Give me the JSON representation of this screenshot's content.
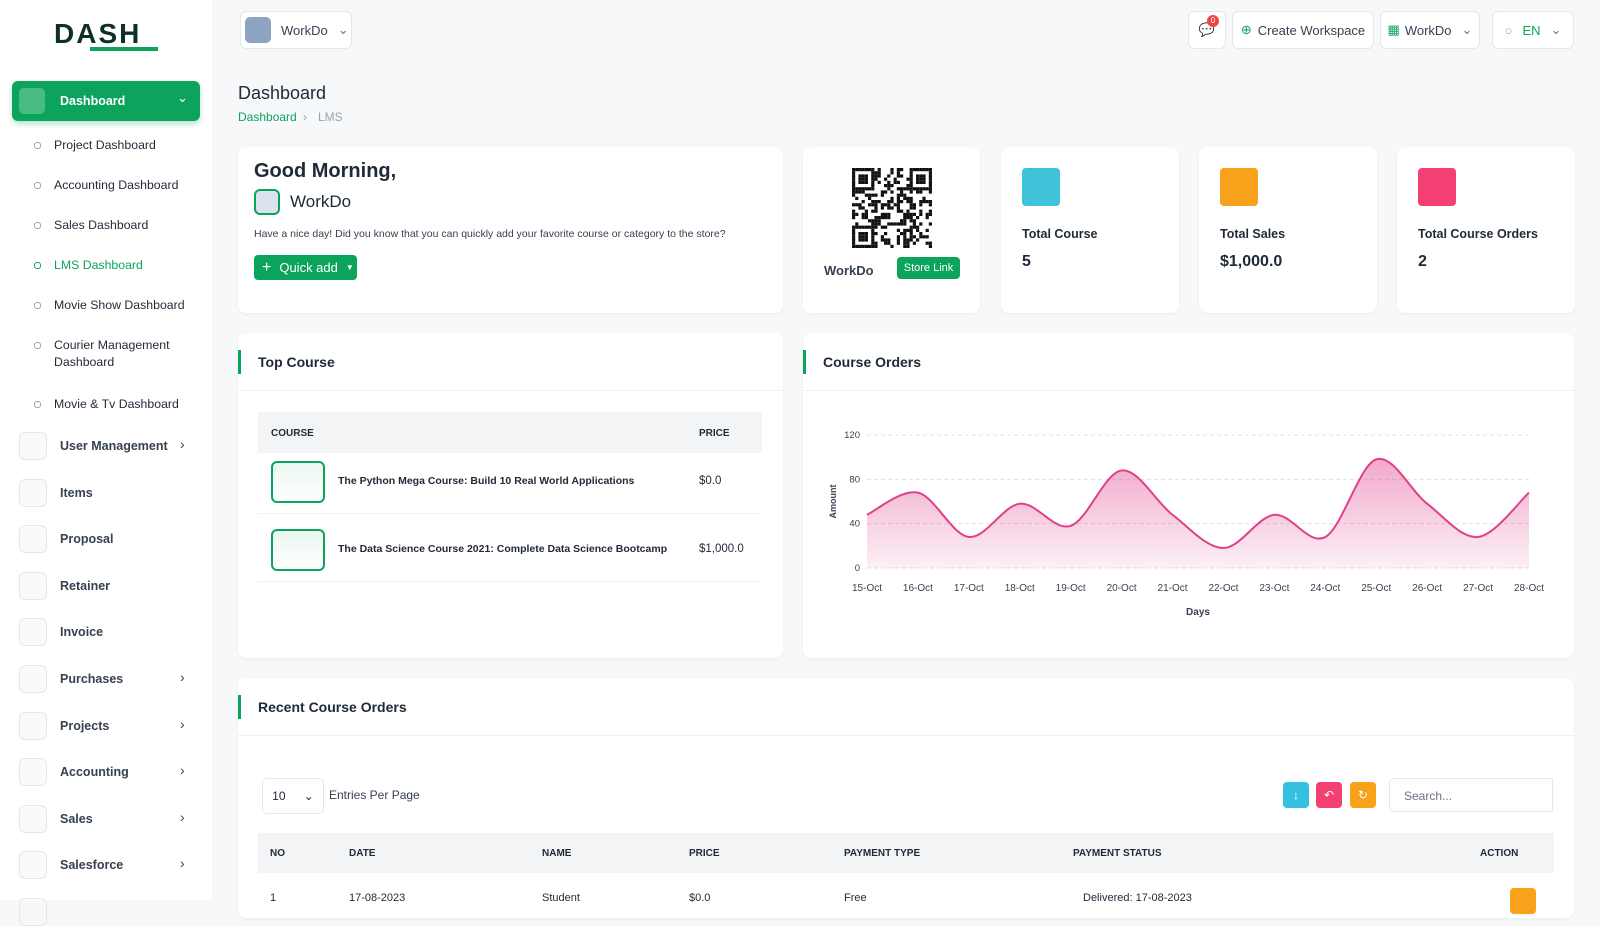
{
  "logo": "DASH",
  "header": {
    "workspace": "WorkDo",
    "notifications": "0",
    "create_workspace": "Create Workspace",
    "user": "WorkDo",
    "language": "EN"
  },
  "sidebar": {
    "dashboard": "Dashboard",
    "submenu": [
      "Project Dashboard",
      "Accounting Dashboard",
      "Sales Dashboard",
      "LMS Dashboard",
      "Movie Show Dashboard",
      "Courier Management Dashboard",
      "Movie & Tv Dashboard"
    ],
    "menu": [
      "User Management",
      "Items",
      "Proposal",
      "Retainer",
      "Invoice",
      "Purchases",
      "Projects",
      "Accounting",
      "Sales",
      "Salesforce"
    ]
  },
  "page": {
    "title": "Dashboard",
    "breadcrumb": [
      "Dashboard",
      "LMS"
    ]
  },
  "welcome": {
    "greeting": "Good Morning,",
    "name": "WorkDo",
    "message": "Have a nice day! Did you know that you can quickly add your favorite course or category to the store?",
    "button": "Quick add"
  },
  "store": {
    "name": "WorkDo",
    "button": "Store Link"
  },
  "stats": [
    {
      "label": "Total Course",
      "value": "5"
    },
    {
      "label": "Total Sales",
      "value": "$1,000.0"
    },
    {
      "label": "Total Course Orders",
      "value": "2"
    }
  ],
  "top_course": {
    "title": "Top Course",
    "columns": [
      "COURSE",
      "PRICE"
    ],
    "rows": [
      [
        "The Python Mega Course: Build 10 Real World Applications",
        "$0.0"
      ],
      [
        "The Data Science Course 2021: Complete Data Science Bootcamp",
        "$1,000.0"
      ]
    ]
  },
  "chart_data": {
    "type": "area",
    "title": "Course Orders",
    "x_label": "Days",
    "y_label": "Amount",
    "categories": [
      "15-Oct",
      "16-Oct",
      "17-Oct",
      "18-Oct",
      "19-Oct",
      "20-Oct",
      "21-Oct",
      "22-Oct",
      "23-Oct",
      "24-Oct",
      "25-Oct",
      "26-Oct",
      "27-Oct",
      "28-Oct"
    ],
    "values": [
      48,
      68,
      28,
      58,
      38,
      88,
      48,
      18,
      48,
      28,
      98,
      58,
      28,
      68
    ],
    "color": "#e0408a",
    "ylim": [
      0,
      120
    ],
    "yticks": [
      0,
      40,
      80,
      120
    ],
    "grid": true
  },
  "recent_orders": {
    "title": "Recent Course Orders",
    "entries": "10",
    "entries_label": "Entries Per Page",
    "search": "Search...",
    "columns": [
      "NO",
      "DATE",
      "NAME",
      "PRICE",
      "PAYMENT TYPE",
      "PAYMENT STATUS",
      "ACTION"
    ],
    "rows": [
      [
        "1",
        "17-08-2023",
        "Student",
        "$0.0",
        "Free",
        "Delivered: 17-08-2023"
      ]
    ]
  }
}
